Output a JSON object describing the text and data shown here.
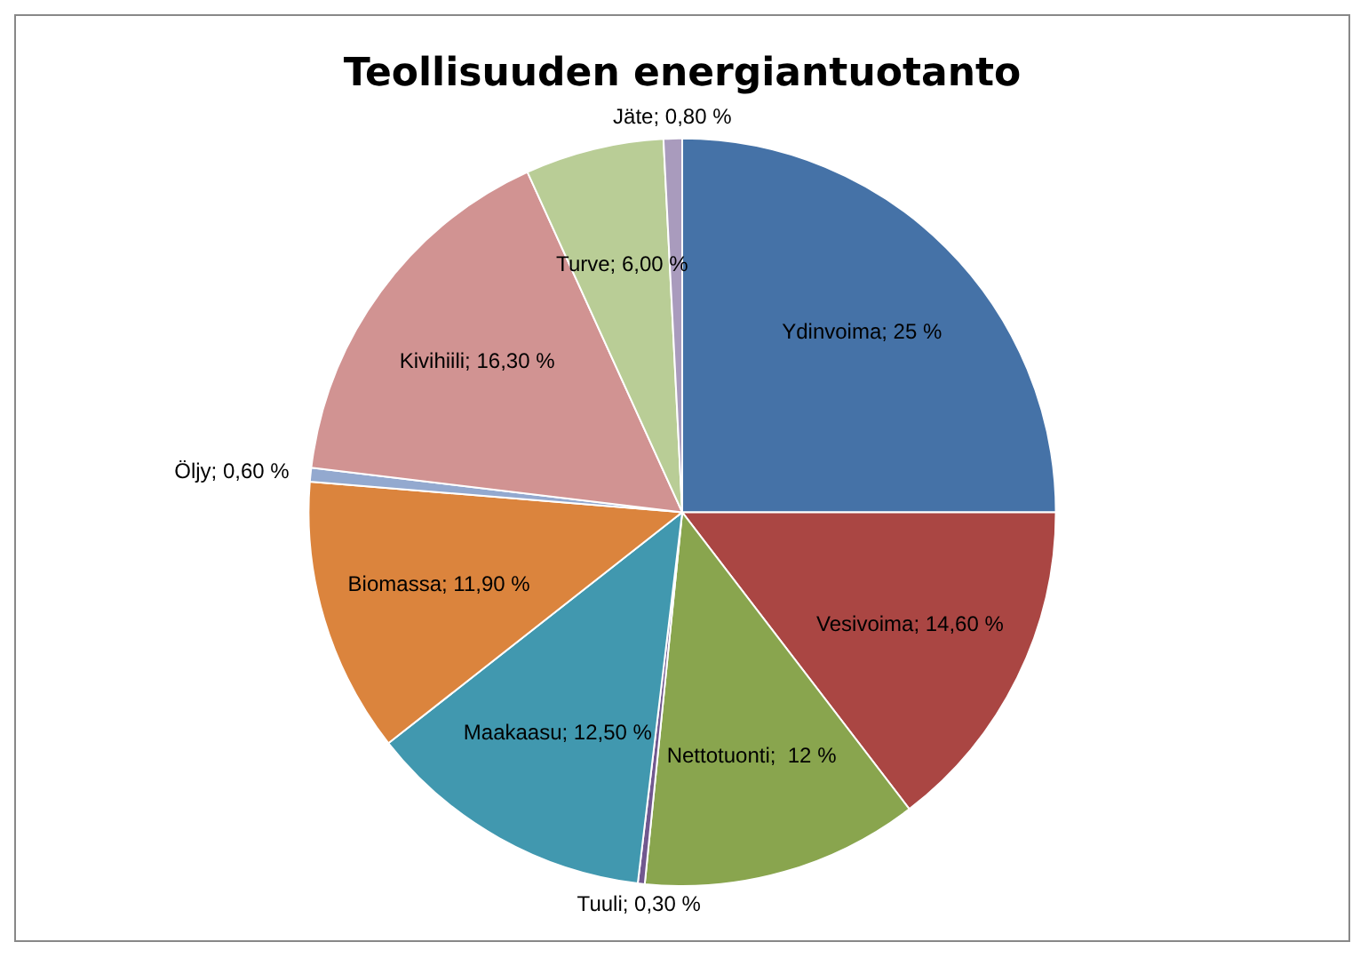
{
  "chart_data": {
    "type": "pie",
    "title": "Teollisuuden energiantuotanto",
    "categories": [
      "Ydinvoima",
      "Vesivoima",
      "Nettotuonti",
      "Tuuli",
      "Maakaasu",
      "Biomassa",
      "Öljy",
      "Kivihiili",
      "Turve",
      "Jäte"
    ],
    "values": [
      25,
      14.6,
      12,
      0.3,
      12.5,
      11.9,
      0.6,
      16.3,
      6,
      0.8
    ],
    "value_labels": [
      "25 %",
      "14,60 %",
      " 12 %",
      "0,30 %",
      "12,50 %",
      "11,90 %",
      "0,60 %",
      "16,30 %",
      "6,00 %",
      "0,80 %"
    ],
    "colors": [
      "#4572a7",
      "#aa4643",
      "#89a54e",
      "#71588f",
      "#4198af",
      "#db843d",
      "#93a9cf",
      "#d19392",
      "#b9cd96",
      "#a99bbd"
    ],
    "legend": false
  }
}
